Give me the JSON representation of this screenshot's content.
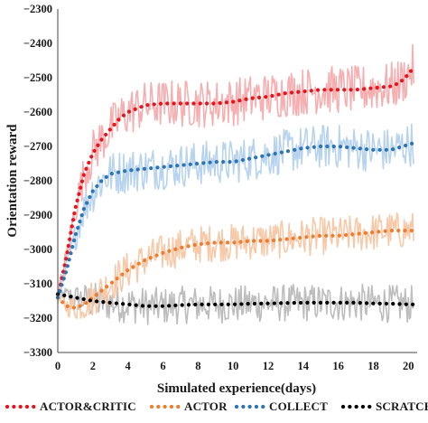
{
  "chart_data": {
    "type": "line",
    "title": "",
    "xlabel": "Simulated experience(days)",
    "ylabel": "Orientation reward",
    "xlim": [
      0,
      20.5
    ],
    "ylim": [
      -3300,
      -2300
    ],
    "xticks": [
      0,
      2,
      4,
      6,
      8,
      10,
      12,
      14,
      16,
      18,
      20
    ],
    "yticks": [
      -2300,
      -2400,
      -2500,
      -2600,
      -2700,
      -2800,
      -2900,
      -3000,
      -3100,
      -3200,
      -3300
    ],
    "grid": false,
    "legend_position": "bottom",
    "series": [
      {
        "name": "ACTOR&CRITIC",
        "color": "#e8141c",
        "raw_color": "#f6aeb0",
        "x": [
          0,
          0.5,
          1,
          1.5,
          2,
          2.5,
          3,
          3.5,
          4,
          5,
          6,
          7,
          8,
          9,
          10,
          11,
          12,
          13,
          14,
          15,
          16,
          17,
          18,
          19,
          19.5,
          20,
          20.3
        ],
        "values": [
          -3140,
          -3020,
          -2880,
          -2780,
          -2720,
          -2680,
          -2650,
          -2620,
          -2600,
          -2580,
          -2575,
          -2575,
          -2575,
          -2575,
          -2570,
          -2560,
          -2555,
          -2545,
          -2540,
          -2535,
          -2535,
          -2535,
          -2530,
          -2525,
          -2515,
          -2490,
          -2470
        ]
      },
      {
        "name": "ACTOR",
        "color": "#ed7d31",
        "raw_color": "#f7c9a8",
        "x": [
          0,
          0.5,
          1,
          1.5,
          2,
          2.5,
          3,
          4,
          5,
          6,
          7,
          8,
          9,
          10,
          11,
          12,
          13,
          14,
          15,
          16,
          17,
          18,
          19,
          20,
          20.3
        ],
        "values": [
          -3140,
          -3165,
          -3170,
          -3160,
          -3140,
          -3120,
          -3100,
          -3060,
          -3030,
          -3010,
          -2995,
          -2985,
          -2980,
          -2980,
          -2975,
          -2975,
          -2970,
          -2965,
          -2960,
          -2960,
          -2955,
          -2950,
          -2945,
          -2945,
          -2945
        ]
      },
      {
        "name": "COLLECT",
        "color": "#2e75b6",
        "raw_color": "#b7d3ee",
        "x": [
          0,
          0.5,
          1,
          1.5,
          2,
          2.5,
          3,
          4,
          5,
          6,
          7,
          8,
          9,
          10,
          11,
          12,
          13,
          14,
          15,
          16,
          17,
          18,
          19,
          20,
          20.3
        ],
        "values": [
          -3140,
          -3060,
          -2960,
          -2880,
          -2830,
          -2800,
          -2780,
          -2770,
          -2765,
          -2760,
          -2755,
          -2750,
          -2745,
          -2745,
          -2735,
          -2725,
          -2715,
          -2705,
          -2700,
          -2700,
          -2705,
          -2710,
          -2710,
          -2695,
          -2690
        ]
      },
      {
        "name": "SCRATCH",
        "color": "#000000",
        "raw_color": "#bdbdbd",
        "x": [
          0,
          1,
          2,
          3,
          4,
          5,
          6,
          7,
          8,
          9,
          10,
          11,
          12,
          13,
          14,
          15,
          16,
          17,
          18,
          19,
          20,
          20.3
        ],
        "values": [
          -3130,
          -3140,
          -3150,
          -3155,
          -3160,
          -3165,
          -3165,
          -3162,
          -3160,
          -3160,
          -3160,
          -3158,
          -3157,
          -3156,
          -3155,
          -3155,
          -3155,
          -3155,
          -3157,
          -3158,
          -3160,
          -3160
        ]
      }
    ]
  }
}
